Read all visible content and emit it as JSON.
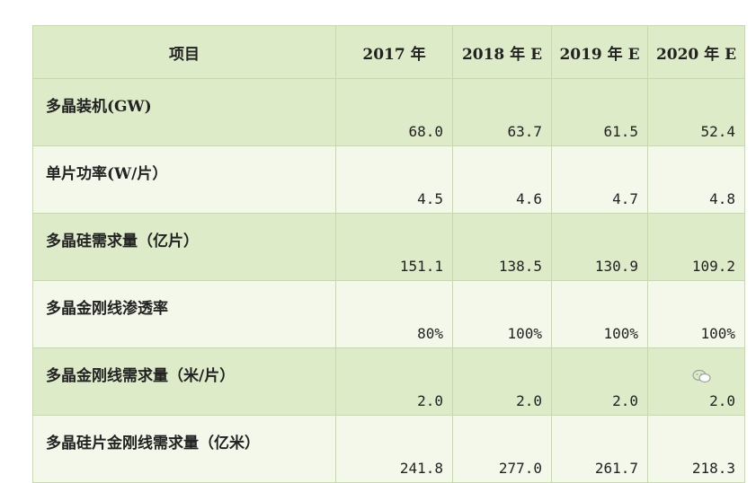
{
  "table": {
    "headers": [
      "项目",
      "2017 年",
      "2018 年 E",
      "2019 年 E",
      "2020 年 E"
    ],
    "rows": [
      {
        "label": "多晶装机(GW)",
        "values": [
          "68.0",
          "63.7",
          "61.5",
          "52.4"
        ]
      },
      {
        "label": "单片功率(W/片）",
        "values": [
          "4.5",
          "4.6",
          "4.7",
          "4.8"
        ]
      },
      {
        "label": "多晶硅需求量（亿片）",
        "values": [
          "151.1",
          "138.5",
          "130.9",
          "109.2"
        ]
      },
      {
        "label": "多晶金刚线渗透率",
        "values": [
          "80%",
          "100%",
          "100%",
          "100%"
        ]
      },
      {
        "label": "多晶金刚线需求量（米/片）",
        "values": [
          "2.0",
          "2.0",
          "2.0",
          "2.0"
        ]
      },
      {
        "label": "多晶硅片金刚线需求量（亿米）",
        "values": [
          "241.8",
          "277.0",
          "261.7",
          "218.3"
        ]
      }
    ]
  },
  "colors": {
    "shaded_row": "#ddebc9",
    "plain_row": "#f3f8ea",
    "border": "#c4dba8"
  },
  "watermark_icon": "wechat-icon"
}
